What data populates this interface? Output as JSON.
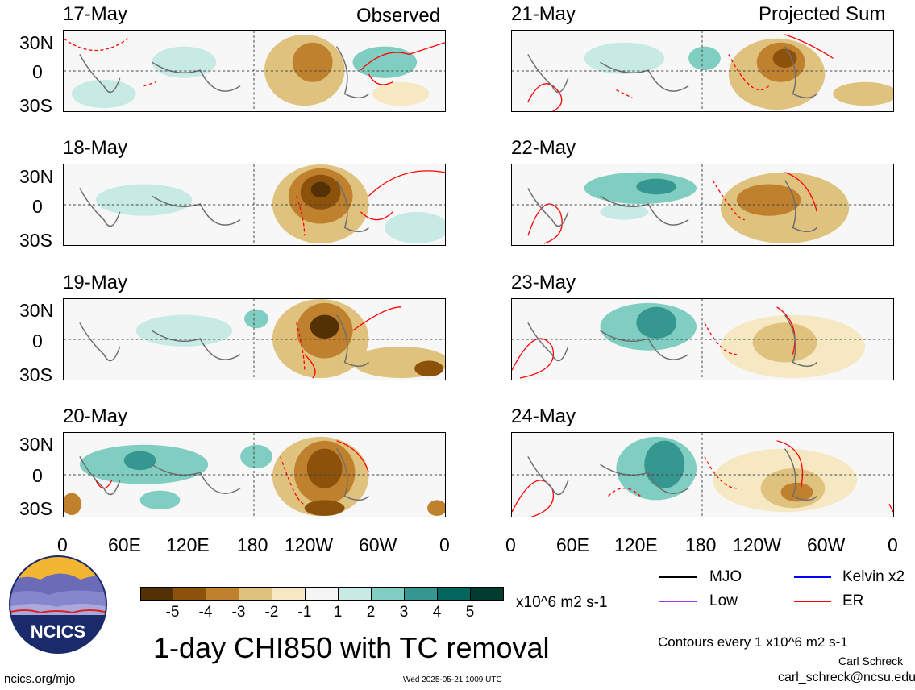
{
  "header": {
    "left_label": "Observed",
    "right_label": "Projected Sum"
  },
  "panels": {
    "left": [
      {
        "date": "17-May"
      },
      {
        "date": "18-May"
      },
      {
        "date": "19-May"
      },
      {
        "date": "20-May"
      }
    ],
    "right": [
      {
        "date": "21-May"
      },
      {
        "date": "22-May"
      },
      {
        "date": "23-May"
      },
      {
        "date": "24-May"
      }
    ]
  },
  "axes": {
    "lat_labels": [
      "30N",
      "0",
      "30S"
    ],
    "lon_labels": [
      "0",
      "60E",
      "120E",
      "180",
      "120W",
      "60W",
      "0"
    ]
  },
  "colorbar": {
    "labels": [
      "-5",
      "-4",
      "-3",
      "-2",
      "-1",
      "1",
      "2",
      "3",
      "4",
      "5"
    ],
    "colors": [
      "#543005",
      "#8c510a",
      "#bf812d",
      "#dfc27d",
      "#f6e8c3",
      "#f5f5f5",
      "#c7eae5",
      "#80cdc1",
      "#35978f",
      "#01665e",
      "#003c30"
    ],
    "units": "x10^6 m2 s-1"
  },
  "legend": {
    "items": [
      {
        "label": "MJO",
        "color": "#000000"
      },
      {
        "label": "Kelvin x2",
        "color": "#0000ff"
      },
      {
        "label": "Low",
        "color": "#9933ff"
      },
      {
        "label": "ER",
        "color": "#ff0000"
      }
    ],
    "contours_note": "Contours every 1 x10^6 m2 s-1",
    "author": "Carl Schreck",
    "email": "carl_schreck@ncsu.edu"
  },
  "main_title": "1-day CHI850 with TC removal",
  "footer": {
    "url": "ncics.org/mjo",
    "timestamp": "Wed 2025-05-21 1009 UTC"
  },
  "logo": {
    "text": "NCICS"
  }
}
